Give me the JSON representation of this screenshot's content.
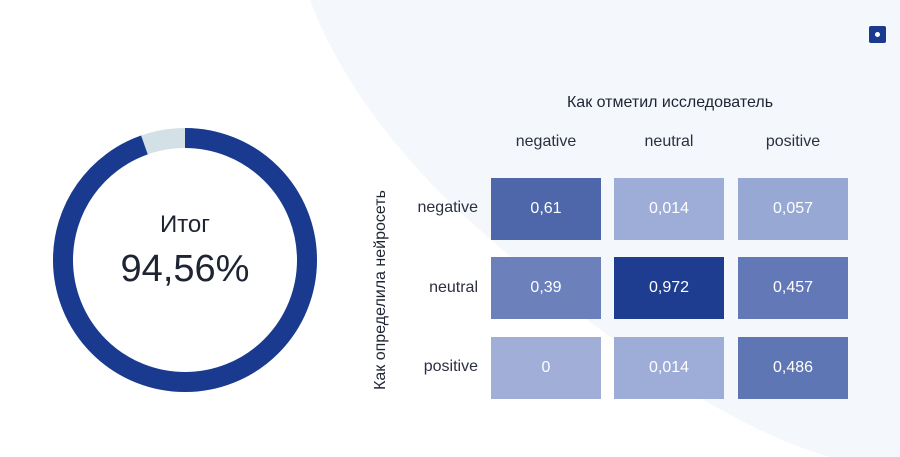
{
  "colors": {
    "accent": "#1a3a8f",
    "donut_remainder": "#d3e1e6",
    "background_panel": "#f4f7fb"
  },
  "donut": {
    "title": "Итог",
    "value_label": "94,56%",
    "fraction": 0.9456
  },
  "chart_data": {
    "type": "heatmap",
    "title": "Как отметил исследователь",
    "xlabel": "Как отметил исследователь",
    "ylabel": "Как определила нейросеть",
    "columns": [
      "negative",
      "neutral",
      "positive"
    ],
    "rows": [
      "negative",
      "neutral",
      "positive"
    ],
    "values": [
      [
        0.61,
        0.014,
        0.057
      ],
      [
        0.39,
        0.972,
        0.457
      ],
      [
        0,
        0.014,
        0.486
      ]
    ],
    "labels": [
      [
        "0,61",
        "0,014",
        "0,057"
      ],
      [
        "0,39",
        "0,972",
        "0,457"
      ],
      [
        "0",
        "0,014",
        "0,486"
      ]
    ]
  }
}
